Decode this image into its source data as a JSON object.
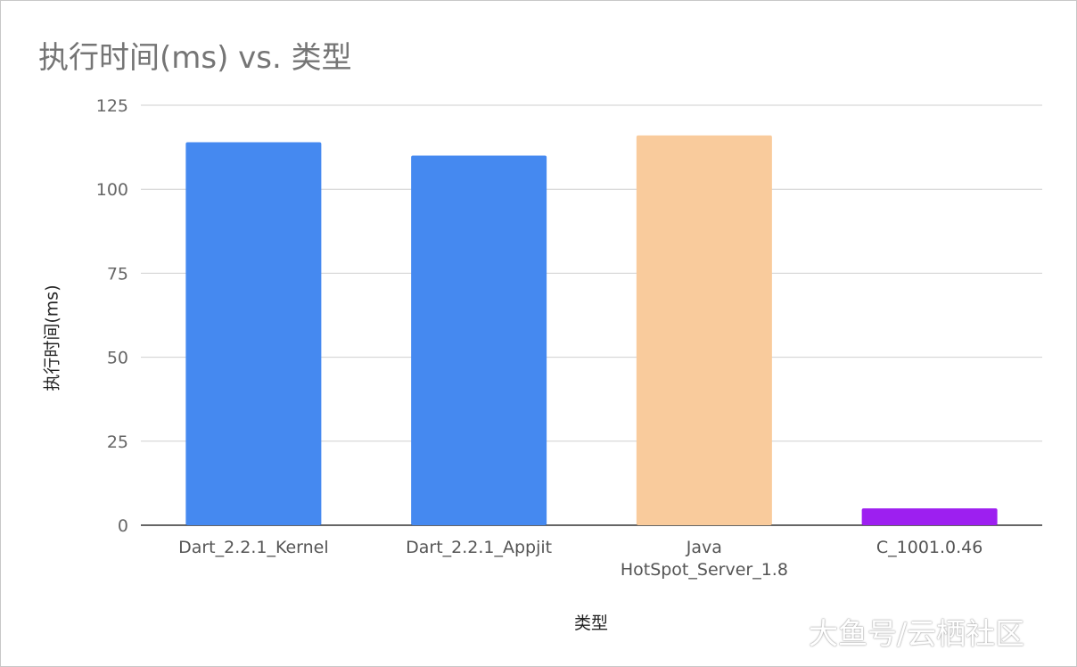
{
  "chart_data": {
    "type": "bar",
    "title": "执行时间(ms) vs. 类型",
    "xlabel": "类型",
    "ylabel": "执行时间(ms)",
    "ylim": [
      0,
      125
    ],
    "yticks": [
      0,
      25,
      50,
      75,
      100,
      125
    ],
    "grid": true,
    "legend": "none",
    "categories": [
      "Dart_2.2.1_Kernel",
      "Dart_2.2.1_Appjit",
      "Java\nHotSpot_Server_1.8",
      "C_1001.0.46"
    ],
    "values": [
      114,
      110,
      116,
      5
    ],
    "colors": [
      "#4589f0",
      "#4589f0",
      "#f9cb9c",
      "#9d1ff0"
    ]
  },
  "watermark": "大鱼号/云栖社区"
}
